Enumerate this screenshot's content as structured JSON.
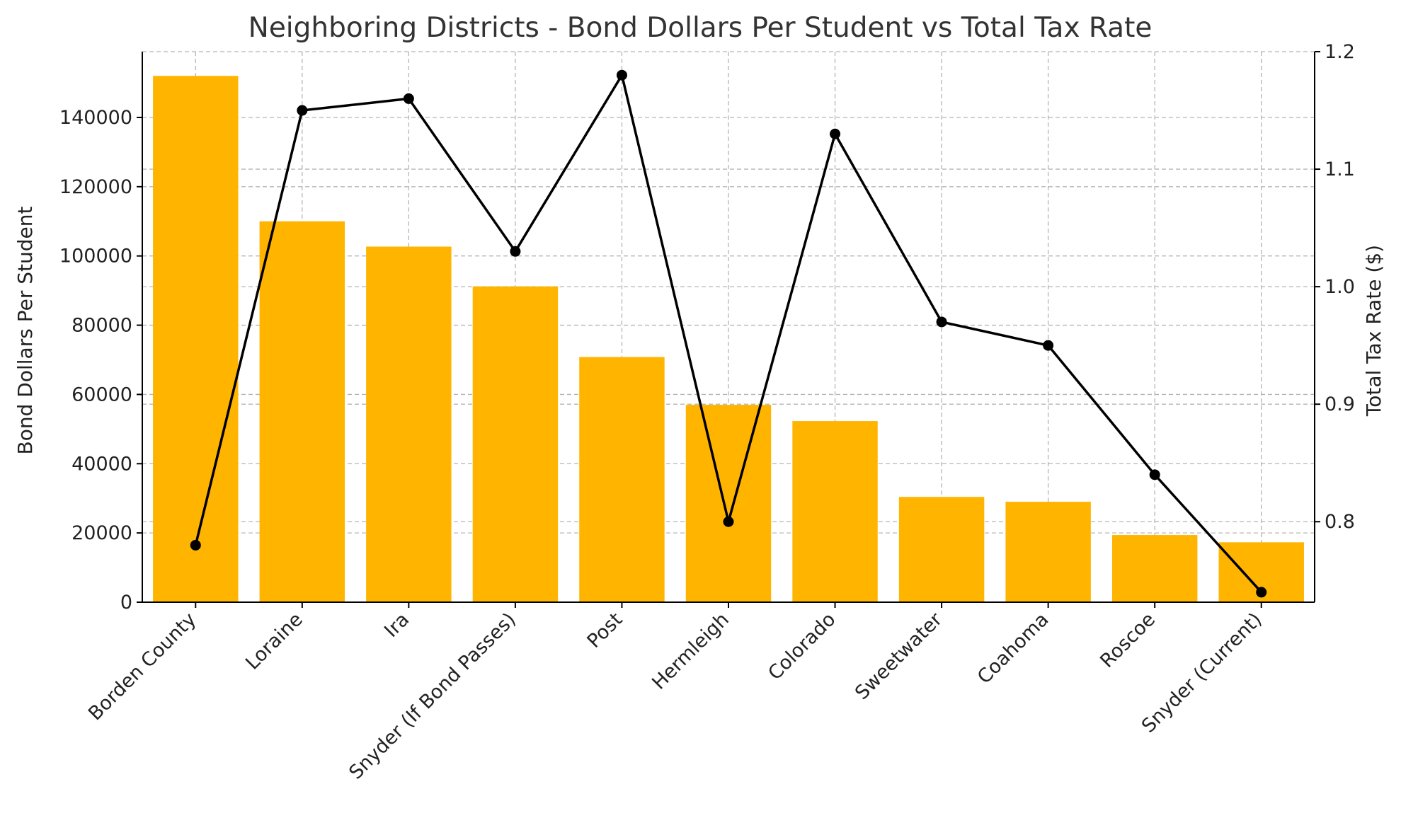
{
  "chart_data": {
    "type": "bar",
    "title": "Neighboring Districts - Bond Dollars Per Student vs Total Tax Rate",
    "ylabel": "Bond Dollars Per Student",
    "y2label": "Total Tax Rate ($)",
    "categories": [
      "Borden County",
      "Loraine",
      "Ira",
      "Snyder (If Bond Passes)",
      "Post",
      "Hermleigh",
      "Colorado",
      "Sweetwater",
      "Coahoma",
      "Roscoe",
      "Snyder (Current)"
    ],
    "series": [
      {
        "type": "bar",
        "axis": "left",
        "color": "#FFB400",
        "values": [
          152000,
          110000,
          102700,
          91200,
          70800,
          57000,
          52300,
          30400,
          29000,
          19400,
          17300
        ]
      },
      {
        "type": "line",
        "axis": "right",
        "color": "#000000",
        "values": [
          0.78,
          1.15,
          1.16,
          1.03,
          1.18,
          0.8,
          1.13,
          0.97,
          0.95,
          0.84,
          0.74
        ]
      }
    ],
    "ylim": [
      0,
      159000
    ],
    "y2lim": [
      0.7315,
      1.2
    ],
    "yticks": [
      "0",
      "20000",
      "40000",
      "60000",
      "80000",
      "100000",
      "120000",
      "140000"
    ],
    "y2ticks": [
      "0.8",
      "0.9",
      "1.0",
      "1.1",
      "1.2"
    ],
    "grid": true
  }
}
